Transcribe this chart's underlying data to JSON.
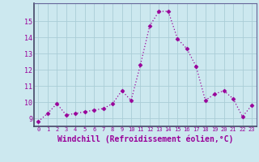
{
  "x": [
    0,
    1,
    2,
    3,
    4,
    5,
    6,
    7,
    8,
    9,
    10,
    11,
    12,
    13,
    14,
    15,
    16,
    17,
    18,
    19,
    20,
    21,
    22,
    23
  ],
  "y": [
    8.8,
    9.3,
    9.9,
    9.2,
    9.3,
    9.4,
    9.5,
    9.6,
    9.9,
    10.7,
    10.1,
    12.3,
    14.7,
    15.6,
    15.6,
    13.9,
    13.3,
    12.2,
    10.1,
    10.5,
    10.7,
    10.2,
    9.1,
    9.8
  ],
  "line_color": "#990099",
  "marker": "D",
  "marker_size": 2.5,
  "xlabel": "Windchill (Refroidissement éolien,°C)",
  "xlabel_fontsize": 7,
  "ylabel_ticks": [
    9,
    10,
    11,
    12,
    13,
    14,
    15
  ],
  "xtick_labels": [
    "0",
    "1",
    "2",
    "3",
    "4",
    "5",
    "6",
    "7",
    "8",
    "9",
    "10",
    "11",
    "12",
    "13",
    "14",
    "15",
    "16",
    "17",
    "18",
    "19",
    "20",
    "21",
    "22",
    "23"
  ],
  "ylim": [
    8.5,
    16.1
  ],
  "xlim": [
    -0.5,
    23.5
  ],
  "background_color": "#cce8ef",
  "grid_color": "#aacdd6",
  "tick_color": "#990099",
  "label_color": "#990099",
  "spine_color": "#666699"
}
